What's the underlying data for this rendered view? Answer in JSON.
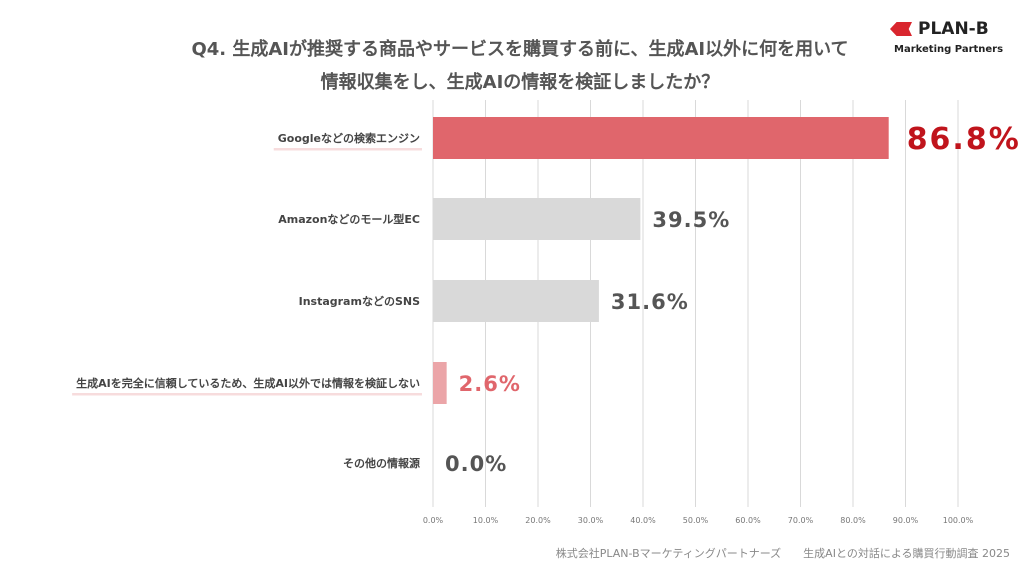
{
  "title_lines": [
    "Q4. 生成AIが推奨する商品やサービスを購買する前に、生成AI以外に何を用いて",
    "情報収集をし、生成AIの情報を検証しましたか？"
  ],
  "logo": {
    "name": "PLAN-B",
    "sub": "Marketing Partners"
  },
  "footer": "株式会社PLAN-Bマーケティングパートナーズ　　生成AIとの対話による購買行動調査 2025",
  "chart_data": {
    "type": "bar",
    "orientation": "horizontal",
    "categories": [
      "Googleなどの検索エンジン",
      "Amazonなどのモール型EC",
      "InstagramなどのSNS",
      "生成AIを完全に信頼しているため、生成AI以外では情報を検証しない",
      "その他の情報源"
    ],
    "values": [
      86.8,
      39.5,
      31.6,
      2.6,
      0.0
    ],
    "value_labels": [
      "86.8%",
      "39.5%",
      "31.6%",
      "2.6%",
      "0.0%"
    ],
    "colors": [
      "#e0666c",
      "#d9d9d9",
      "#d9d9d9",
      "#eba5a8",
      "#d9d9d9"
    ],
    "label_colors": [
      "#c0141c",
      "#555555",
      "#555555",
      "#e0666c",
      "#555555"
    ],
    "highlighted": [
      true,
      false,
      false,
      true,
      false
    ],
    "xlim": [
      0,
      100
    ],
    "xticks": [
      "0.0%",
      "10.0%",
      "20.0%",
      "30.0%",
      "40.0%",
      "50.0%",
      "60.0%",
      "70.0%",
      "80.0%",
      "90.0%",
      "100.0%"
    ],
    "grid": true
  }
}
